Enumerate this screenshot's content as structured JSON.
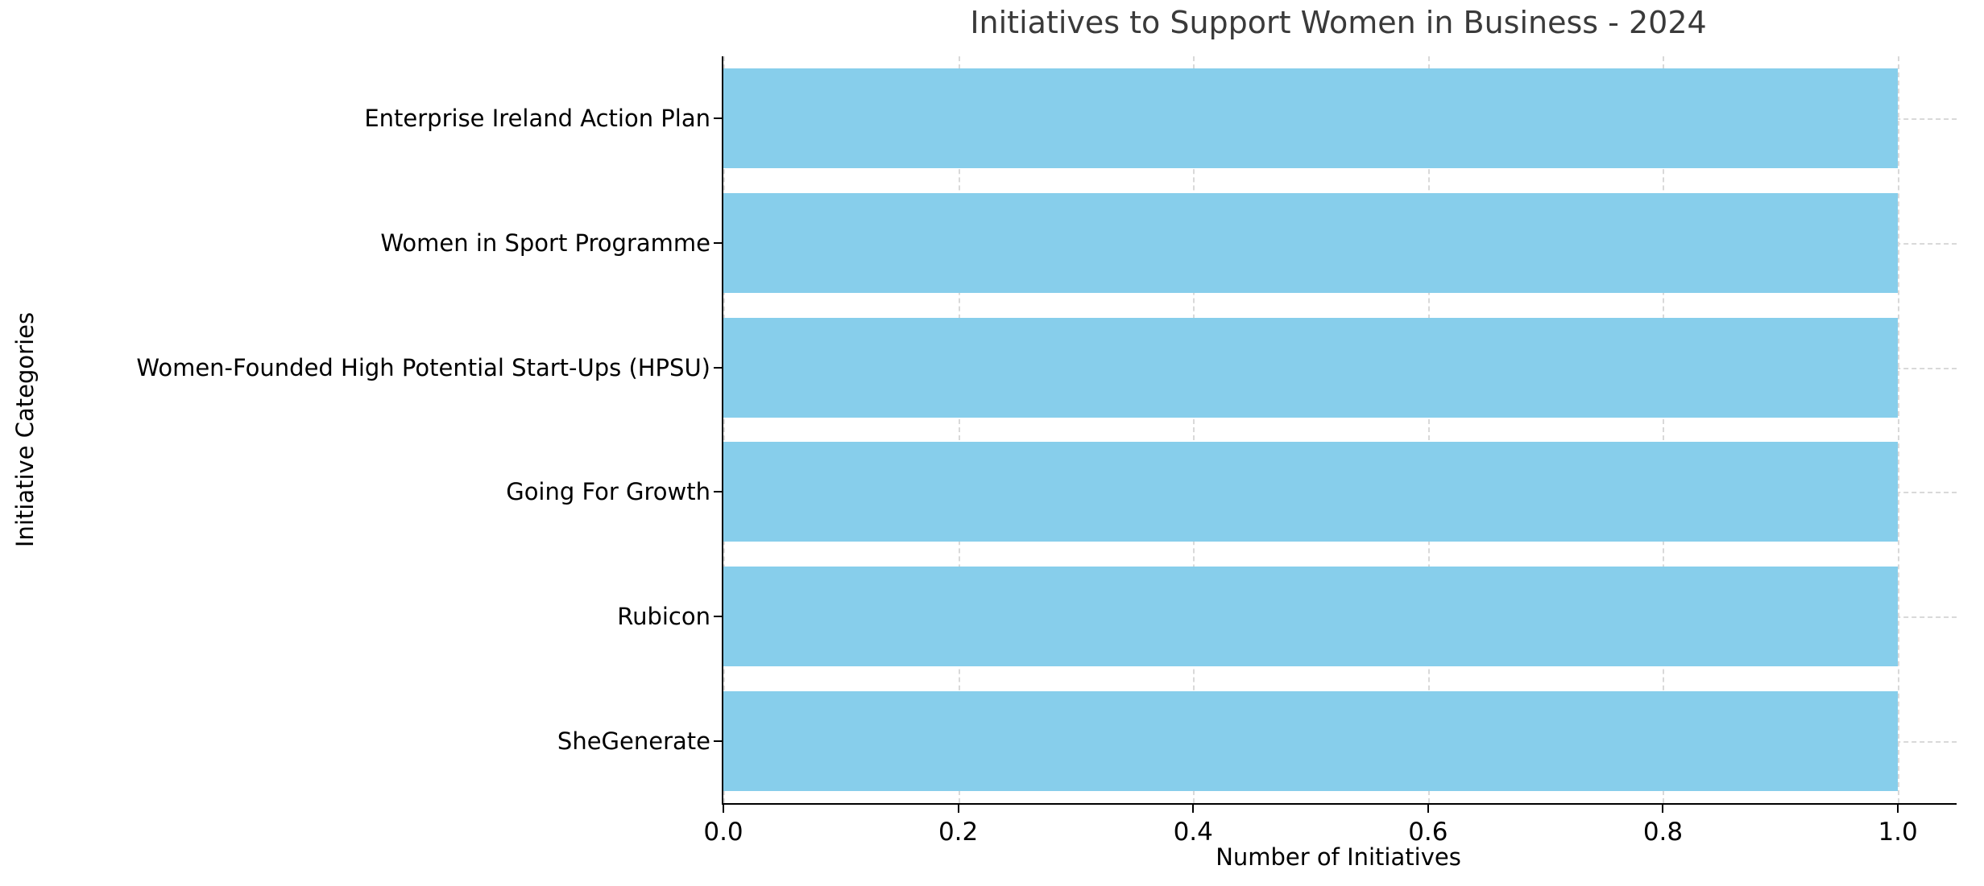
{
  "chart_data": {
    "type": "bar",
    "orientation": "horizontal",
    "title": "Initiatives to Support Women in Business - 2024",
    "xlabel": "Number of Initiatives",
    "ylabel": "Initiative Categories",
    "categories": [
      "Enterprise Ireland Action Plan",
      "Women in Sport Programme",
      "Women-Founded High Potential Start-Ups (HPSU)",
      "Going For Growth",
      "Rubicon",
      "SheGenerate"
    ],
    "values": [
      1.0,
      1.0,
      1.0,
      1.0,
      1.0,
      1.0
    ],
    "xticks": [
      0.0,
      0.2,
      0.4,
      0.6,
      0.8,
      1.0
    ],
    "xlim": [
      0,
      1.05
    ],
    "bar_color": "#87CEEB",
    "grid_color": "#d9d9d9",
    "grid_style": "dashed",
    "title_color": "#3a3a3a",
    "legend": "none"
  }
}
